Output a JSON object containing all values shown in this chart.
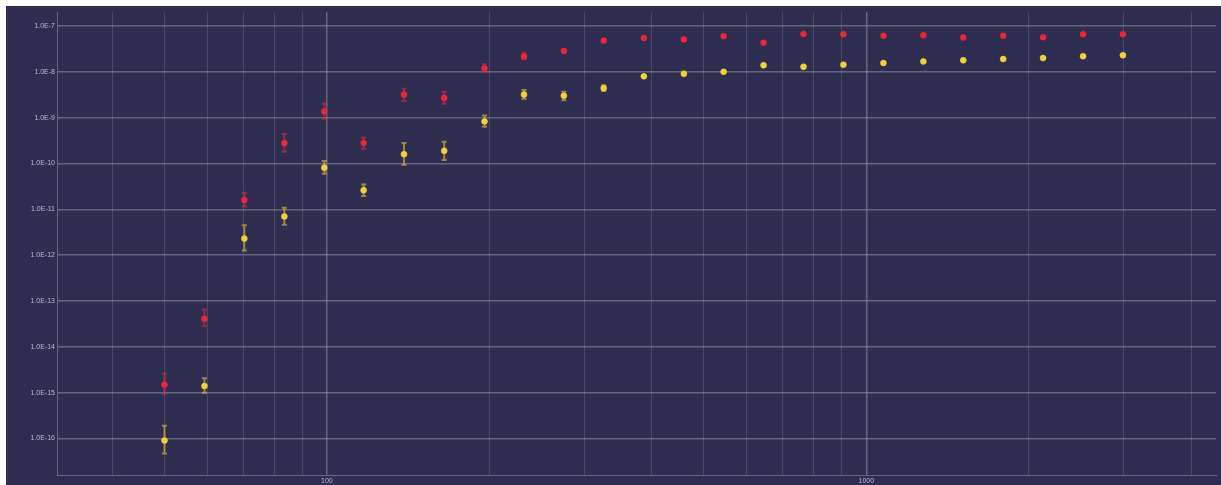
{
  "chart_data": {
    "type": "scatter",
    "x": [
      50,
      59.3,
      70.3,
      83.4,
      98.9,
      117,
      139,
      165,
      196,
      232,
      275,
      326,
      387,
      459,
      544,
      645,
      765,
      907,
      1076,
      1276,
      1513,
      1794,
      2127,
      2523,
      2991
    ],
    "series": [
      {
        "color": "#e8283a",
        "values": [
          1.5e-15,
          4.1e-14,
          1.6e-11,
          2.8e-10,
          1.37e-09,
          2.8e-10,
          3.2e-09,
          2.7e-09,
          1.2e-08,
          2.17e-08,
          2.86e-08,
          4.8e-08,
          5.5e-08,
          5.1e-08,
          6e-08,
          4.3e-08,
          6.7e-08,
          6.6e-08,
          6.1e-08,
          6.3e-08,
          5.6e-08,
          6.1e-08,
          5.7e-08,
          6.6e-08,
          6.6e-08
        ],
        "errors": [
          [
            9.5e-16,
            2.6e-15
          ],
          [
            2.8e-14,
            6.5e-14
          ],
          [
            1.15e-11,
            2.3e-11
          ],
          [
            1.8e-10,
            4.4e-10
          ],
          [
            9.5e-10,
            2e-09
          ],
          [
            2.1e-10,
            3.7e-10
          ],
          [
            2.3e-09,
            4.3e-09
          ],
          [
            2e-09,
            3.7e-09
          ],
          [
            1e-08,
            1.46e-08
          ],
          [
            1.87e-08,
            2.6e-08
          ],
          null,
          null,
          null,
          null,
          null,
          null,
          null,
          null,
          null,
          null,
          null,
          null,
          null,
          null,
          null
        ]
      },
      {
        "color": "#f2d23c",
        "values": [
          9.1e-17,
          1.4e-15,
          2.3e-12,
          7e-12,
          8.1e-11,
          2.6e-11,
          1.6e-10,
          1.9e-10,
          8.3e-10,
          3.2e-09,
          3e-09,
          4.4e-09,
          8e-09,
          9.1e-09,
          1e-08,
          1.39e-08,
          1.29e-08,
          1.43e-08,
          1.56e-08,
          1.69e-08,
          1.78e-08,
          1.9e-08,
          2e-08,
          2.2e-08,
          2.3e-08
        ],
        "errors": [
          [
            4.7e-17,
            1.9e-16
          ],
          [
            1e-15,
            2.07e-15
          ],
          [
            1.27e-12,
            4.5e-12
          ],
          [
            4.6e-12,
            1.09e-11
          ],
          [
            6e-11,
            1.14e-10
          ],
          [
            1.95e-11,
            3.5e-11
          ],
          [
            9.4e-11,
            2.8e-10
          ],
          [
            1.2e-10,
            3e-10
          ],
          [
            6.3e-10,
            1.12e-09
          ],
          [
            2.6e-09,
            4e-09
          ],
          [
            2.4e-09,
            3.7e-09
          ],
          [
            3.8e-09,
            5.1e-09
          ],
          null,
          null,
          null,
          null,
          null,
          null,
          null,
          null,
          null,
          null,
          null,
          null,
          null
        ]
      }
    ],
    "log": "xy",
    "xlim": [
      31.6,
      4450
    ],
    "ylim": [
      1.6e-17,
      2e-07
    ],
    "xticks": [
      {
        "value": 40,
        "label": null
      },
      {
        "value": 50,
        "label": null
      },
      {
        "value": 60,
        "label": null
      },
      {
        "value": 70,
        "label": null
      },
      {
        "value": 80,
        "label": null
      },
      {
        "value": 90,
        "label": null
      },
      {
        "value": 100,
        "label": "100"
      },
      {
        "value": 200,
        "label": null
      },
      {
        "value": 300,
        "label": null
      },
      {
        "value": 400,
        "label": null
      },
      {
        "value": 500,
        "label": null
      },
      {
        "value": 600,
        "label": null
      },
      {
        "value": 700,
        "label": null
      },
      {
        "value": 800,
        "label": null
      },
      {
        "value": 900,
        "label": null
      },
      {
        "value": 1000,
        "label": "1000"
      },
      {
        "value": 2000,
        "label": null
      },
      {
        "value": 3000,
        "label": null
      },
      {
        "value": 4000,
        "label": null
      }
    ],
    "yticks": [
      {
        "value": 1e-16,
        "label": "1.0E-16"
      },
      {
        "value": 1e-15,
        "label": "1.0E-15"
      },
      {
        "value": 1e-14,
        "label": "1.0E-14"
      },
      {
        "value": 1e-13,
        "label": "1.0E-13"
      },
      {
        "value": 1e-12,
        "label": "1.0E-12"
      },
      {
        "value": 1e-11,
        "label": "1.0E-11"
      },
      {
        "value": 1e-10,
        "label": "1.0E-10"
      },
      {
        "value": 1e-09,
        "label": "1.0E-9"
      },
      {
        "value": 1e-08,
        "label": "1.0E-8"
      },
      {
        "value": 1e-07,
        "label": "1.0E-7"
      }
    ],
    "grid": true,
    "marker": "circle",
    "legend": false
  }
}
